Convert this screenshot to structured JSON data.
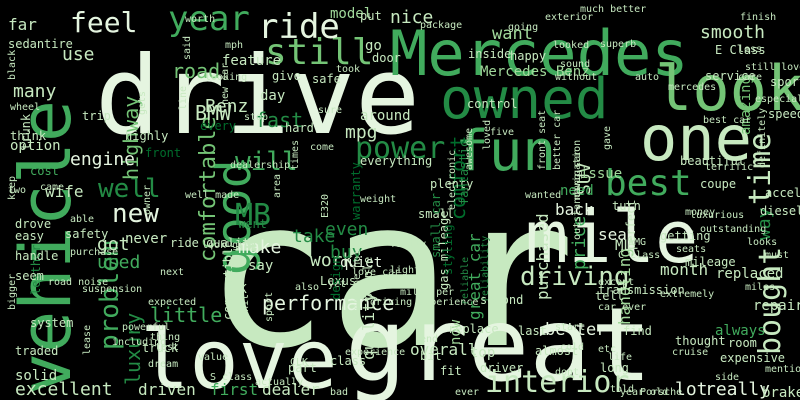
{
  "palette": {
    "background": "#000000",
    "lightest": "#e5f5e0",
    "light": "#c7e9c0",
    "pale": "#a1d99b",
    "mid": "#74c476",
    "medium": "#41ab5d",
    "dark": "#238b45",
    "darker": "#006d2c",
    "darkest": "#00441b"
  },
  "words": [
    "car",
    "drive",
    "great",
    "love",
    "Mercedes",
    "mile",
    "vehicle",
    "one",
    "look",
    "owned",
    "good",
    "fun",
    "power",
    "still",
    "year",
    "ride",
    "feel",
    "problem",
    "will",
    "best",
    "time",
    "bought",
    "interior",
    "driving",
    "new",
    "well",
    "MB",
    "comfortable",
    "performance",
    "little",
    "luxury",
    "BMW",
    "Benz",
    "mpg",
    "fast",
    "road",
    "highway",
    "engine",
    "excellent",
    "driven",
    "first",
    "dealer",
    "model",
    "nice",
    "want",
    "smooth",
    "Mercedes Benz",
    "use",
    "many",
    "wife",
    "got",
    "used",
    "make",
    "work",
    "take",
    "buy",
    "even",
    "comfort",
    "great car",
    "purchased",
    "back",
    "quality",
    "overall",
    "now",
    "top",
    "better",
    "seat",
    "month",
    "handling",
    "price",
    "ML",
    "SUV",
    "really",
    "lot",
    "way",
    "amazing",
    "need",
    "issue",
    "around",
    "day",
    "feature",
    "far",
    "sedan",
    "tire",
    "option",
    "think",
    "cost",
    "trip",
    "every",
    "go",
    "put",
    "door",
    "never",
    "say",
    "quiet",
    "Lexus",
    "people",
    "went",
    "always",
    "replaced",
    "repair",
    "brake",
    "speed",
    "service",
    "sporty",
    "E Class",
    "inside",
    "happy",
    "control",
    "safe",
    "plenty",
    "small",
    "small car",
    "reliable",
    "reliability",
    "gas mileage",
    "transmission",
    "second",
    "replace",
    "last",
    "almost",
    "find",
    "perfect",
    "thought",
    "drove",
    "leather",
    "warranty",
    "everything",
    "beautiful",
    "CLK",
    "SLK",
    "AMG",
    "E320",
    "C class",
    "diesel",
    "acceleration",
    "expensive",
    "getting",
    "mileage",
    "coupe",
    "turn",
    "family",
    "light",
    "yet",
    "solid",
    "system",
    "truck",
    "dream",
    "hard",
    "front",
    "give",
    "part",
    "class",
    "bit",
    "fit",
    "long",
    "room",
    "driver",
    "fantastic",
    "styling",
    "design",
    "convertible",
    "sport",
    "hit",
    "handle",
    "trunk",
    "easy",
    "safety",
    "seem",
    "traded",
    "purchase",
    "able",
    "must",
    "still love",
    "much better",
    "five",
    "two",
    "owner",
    "start",
    "gets",
    "test",
    "without",
    "expected",
    "thing",
    "value",
    "better car",
    "navigation",
    "money",
    "definitely",
    "powerful",
    "including",
    "lease",
    "road noise",
    "suspension",
    "experience",
    "awesome",
    "loved",
    "dealership",
    "stop",
    "line",
    "said",
    "worth",
    "mph",
    "looking",
    "going",
    "looked",
    "sound",
    "care",
    "superb",
    "finish",
    "black",
    "keep",
    "wheel",
    "mercedes",
    "highly",
    "luxurious",
    "outstanding",
    "seats",
    "car ever",
    "best car",
    "love car",
    "driving experience",
    "ride quality",
    "look great",
    "new car",
    "next",
    "bad",
    "told",
    "tell",
    "S class",
    "ever",
    "Porsche",
    "except",
    "took",
    "package",
    "exterior",
    "electronic",
    "looks",
    "cruise",
    "etc",
    "side",
    "weight",
    "less",
    "bigger",
    "auto",
    "sure",
    "times",
    "gave",
    "life",
    "area",
    "mention",
    "cold",
    "engine noise",
    "actually",
    "also",
    "miles",
    "especially",
    "extremely",
    "terrific",
    "outstanding car",
    "dont",
    "come",
    "came",
    "end",
    "miles per",
    "front seat",
    "well made",
    "wanted",
    "year old",
    "another",
    "maintenance",
    "pleasure",
    "owning",
    "recommend",
    "heavy",
    "size",
    "tail",
    "pretty",
    "running"
  ]
}
